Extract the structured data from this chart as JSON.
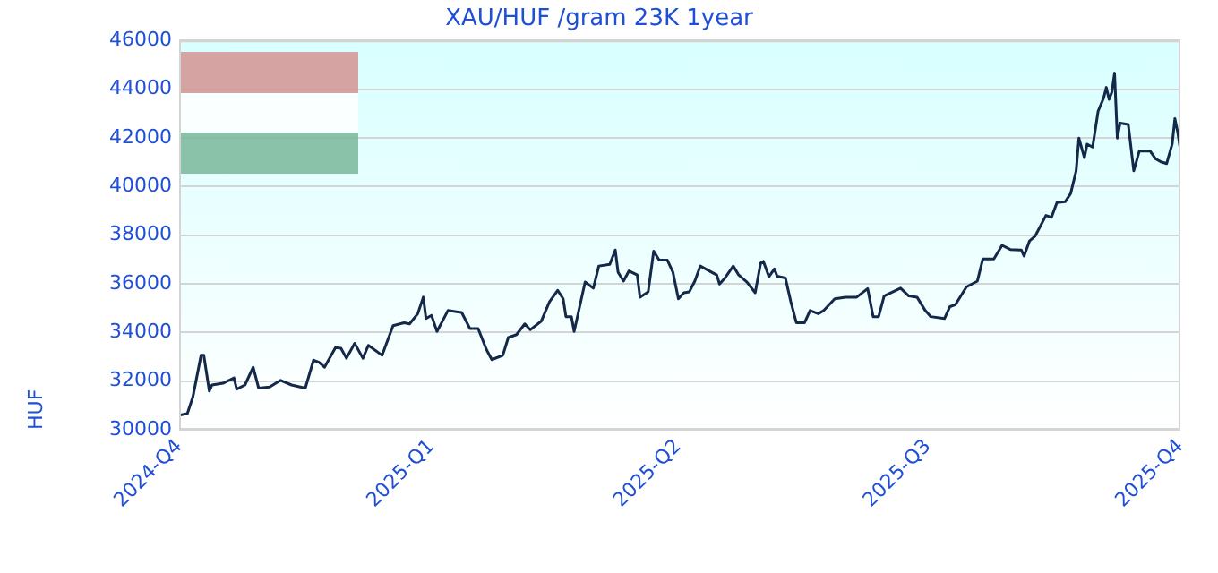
{
  "chart_data": {
    "type": "line",
    "title": "XAU/HUF /gram 23K 1year",
    "ylabel": "HUF",
    "x": [
      "2024-10-01",
      "2024-10-04",
      "2024-10-06",
      "2024-10-09",
      "2024-10-10",
      "2024-10-12",
      "2024-10-13",
      "2024-10-17",
      "2024-10-21",
      "2024-10-22",
      "2024-10-25",
      "2024-10-28",
      "2024-10-30",
      "2024-11-03",
      "2024-11-07",
      "2024-11-11",
      "2024-11-16",
      "2024-11-19",
      "2024-11-21",
      "2024-11-23",
      "2024-11-27",
      "2024-11-29",
      "2024-12-01",
      "2024-12-04",
      "2024-12-07",
      "2024-12-09",
      "2024-12-14",
      "2024-12-18",
      "2024-12-22",
      "2024-12-24",
      "2024-12-27",
      "2024-12-29",
      "2024-12-30",
      "2025-01-01",
      "2025-01-03",
      "2025-01-07",
      "2025-01-12",
      "2025-01-15",
      "2025-01-18",
      "2025-01-21",
      "2025-01-23",
      "2025-01-27",
      "2025-01-29",
      "2025-02-01",
      "2025-02-04",
      "2025-02-06",
      "2025-02-10",
      "2025-02-13",
      "2025-02-16",
      "2025-02-18",
      "2025-02-19",
      "2025-02-21",
      "2025-02-22",
      "2025-02-26",
      "2025-03-01",
      "2025-03-03",
      "2025-03-07",
      "2025-03-09",
      "2025-03-10",
      "2025-03-12",
      "2025-03-14",
      "2025-03-17",
      "2025-03-18",
      "2025-03-21",
      "2025-03-23",
      "2025-03-25",
      "2025-03-28",
      "2025-03-30",
      "2025-04-01",
      "2025-04-03",
      "2025-04-05",
      "2025-04-07",
      "2025-04-09",
      "2025-04-13",
      "2025-04-15",
      "2025-04-16",
      "2025-04-18",
      "2025-04-21",
      "2025-04-23",
      "2025-04-26",
      "2025-04-29",
      "2025-05-01",
      "2025-05-02",
      "2025-05-04",
      "2025-05-06",
      "2025-05-07",
      "2025-05-10",
      "2025-05-12",
      "2025-05-14",
      "2025-05-17",
      "2025-05-19",
      "2025-05-22",
      "2025-05-24",
      "2025-05-28",
      "2025-06-01",
      "2025-06-05",
      "2025-06-09",
      "2025-06-11",
      "2025-06-13",
      "2025-06-15",
      "2025-06-21",
      "2025-06-24",
      "2025-06-27",
      "2025-06-30",
      "2025-07-02",
      "2025-07-07",
      "2025-07-09",
      "2025-07-11",
      "2025-07-15",
      "2025-07-19",
      "2025-07-21",
      "2025-07-25",
      "2025-07-28",
      "2025-07-31",
      "2025-08-04",
      "2025-08-05",
      "2025-08-07",
      "2025-08-09",
      "2025-08-13",
      "2025-08-15",
      "2025-08-17",
      "2025-08-20",
      "2025-08-22",
      "2025-08-24",
      "2025-08-25",
      "2025-08-27",
      "2025-08-28",
      "2025-08-30",
      "2025-09-01",
      "2025-09-03",
      "2025-09-04",
      "2025-09-05",
      "2025-09-06",
      "2025-09-07",
      "2025-09-08",
      "2025-09-09",
      "2025-09-12",
      "2025-09-14",
      "2025-09-16",
      "2025-09-20",
      "2025-09-22",
      "2025-09-24",
      "2025-09-26",
      "2025-09-28",
      "2025-09-29",
      "2025-09-30",
      "2025-10-01"
    ],
    "series": [
      {
        "color": "#14284a",
        "values": [
          30600,
          30660,
          31340,
          33060,
          33060,
          31590,
          31840,
          31910,
          32130,
          31670,
          31840,
          32570,
          31710,
          31760,
          32030,
          31840,
          31710,
          32860,
          32770,
          32570,
          33380,
          33350,
          32940,
          33550,
          32940,
          33470,
          33060,
          34280,
          34400,
          34350,
          34770,
          35450,
          34570,
          34700,
          34040,
          34900,
          34820,
          34160,
          34160,
          33300,
          32880,
          33060,
          33790,
          33910,
          34350,
          34110,
          34460,
          35260,
          35730,
          35380,
          34650,
          34650,
          34040,
          36070,
          35820,
          36730,
          36800,
          37390,
          36480,
          36110,
          36530,
          36360,
          35450,
          35670,
          37340,
          36970,
          36970,
          36480,
          35380,
          35630,
          35670,
          36110,
          36730,
          36480,
          36360,
          35990,
          36240,
          36730,
          36360,
          36070,
          35630,
          36850,
          36920,
          36290,
          36610,
          36310,
          36240,
          35260,
          34400,
          34400,
          34900,
          34770,
          34900,
          35380,
          35450,
          35450,
          35800,
          34650,
          34650,
          35500,
          35820,
          35500,
          35450,
          34900,
          34650,
          34570,
          35060,
          35140,
          35870,
          36110,
          37020,
          37020,
          37580,
          37410,
          37390,
          37140,
          37760,
          37950,
          38810,
          38730,
          39340,
          39370,
          39710,
          40640,
          41990,
          41180,
          41740,
          41620,
          43090,
          43630,
          44070,
          43580,
          43870,
          44660,
          41990,
          42600,
          42550,
          40640,
          41450,
          41450,
          41130,
          41010,
          40940,
          41740,
          42790,
          42240,
          41500
        ]
      }
    ],
    "xlim": [
      "2024-10-01",
      "2025-10-01"
    ],
    "xticks": [
      {
        "value": "2024-10-01",
        "label": "2024-Q4"
      },
      {
        "value": "2025-01-01",
        "label": "2025-Q1"
      },
      {
        "value": "2025-04-01",
        "label": "2025-Q2"
      },
      {
        "value": "2025-07-01",
        "label": "2025-Q3"
      },
      {
        "value": "2025-10-01",
        "label": "2025-Q4"
      }
    ],
    "ylim": [
      30000,
      46000
    ],
    "yticks": [
      30000,
      32000,
      34000,
      36000,
      38000,
      40000,
      42000,
      44000,
      46000
    ],
    "grid": "y",
    "legend": false,
    "marker": "none",
    "line_style": "solid"
  }
}
